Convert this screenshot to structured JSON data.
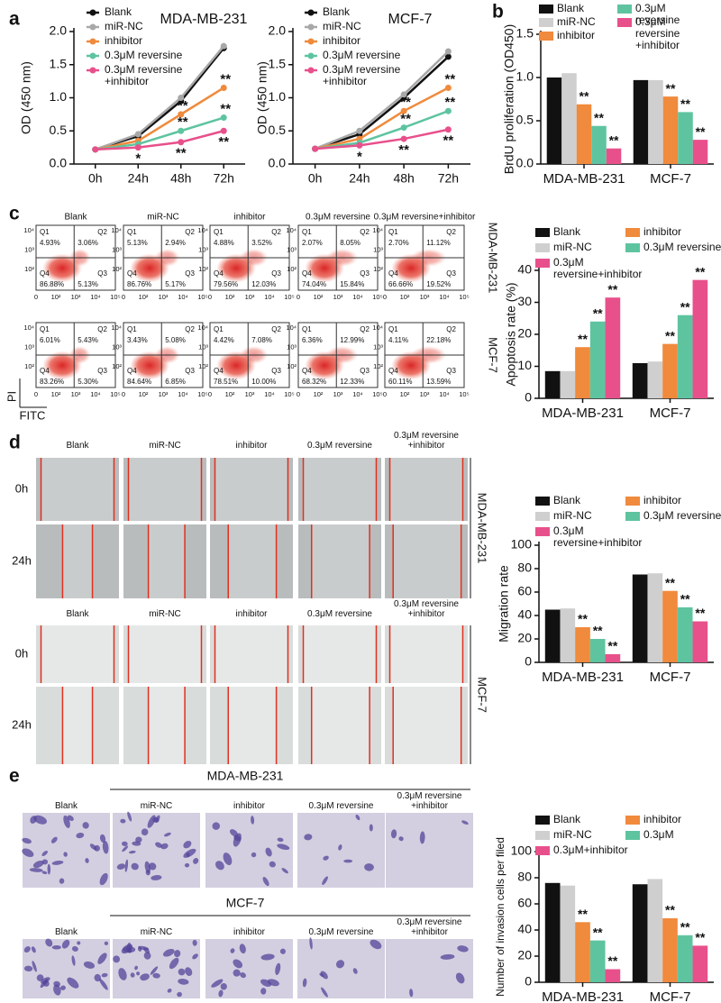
{
  "panel_labels": [
    "a",
    "b",
    "c",
    "d",
    "e"
  ],
  "chart_data": [
    {
      "type": "line",
      "title": "MDA-MB-231",
      "y_label": "OD (450 nm)",
      "categories": [
        "0h",
        "24h",
        "48h",
        "72h"
      ],
      "ylim": [
        0,
        2
      ],
      "yticks": [
        {
          "value": 0,
          "label": "0.0"
        },
        0.5,
        {
          "value": 1,
          "label": "1.0"
        },
        1.5,
        {
          "value": 2,
          "label": "2.0"
        }
      ],
      "series": [
        {
          "name": "Blank",
          "color": "#111111",
          "values": [
            0.22,
            0.42,
            0.95,
            1.75
          ]
        },
        {
          "name": "miR-NC",
          "color": "#a8a8a8",
          "values": [
            0.22,
            0.45,
            1.0,
            1.78
          ]
        },
        {
          "name": "inhibitor",
          "color": "#f08a3c",
          "values": [
            0.22,
            0.35,
            0.75,
            1.15
          ],
          "significance": [
            null,
            null,
            "**",
            "**"
          ]
        },
        {
          "name": "0.3μM reversine",
          "color": "#5ec4a0",
          "values": [
            0.22,
            0.3,
            0.5,
            0.7
          ],
          "significance": [
            null,
            null,
            "**",
            "**"
          ]
        },
        {
          "name": "0.3μM reversine +inhibitor",
          "color": "#e8508c",
          "values": [
            0.22,
            0.25,
            0.33,
            0.5
          ],
          "significance": [
            null,
            "*",
            "**",
            "**"
          ]
        }
      ]
    },
    {
      "type": "line",
      "title": "MCF-7",
      "y_label": "OD (450 nm)",
      "categories": [
        "0h",
        "24h",
        "48h",
        "72h"
      ],
      "ylim": [
        0,
        2
      ],
      "yticks": [
        {
          "value": 0,
          "label": "0.0"
        },
        0.5,
        {
          "value": 1,
          "label": "1.0"
        },
        1.5,
        {
          "value": 2,
          "label": "2.0"
        }
      ],
      "series": [
        {
          "name": "Blank",
          "color": "#111111",
          "values": [
            0.23,
            0.45,
            1.0,
            1.62
          ]
        },
        {
          "name": "miR-NC",
          "color": "#a8a8a8",
          "values": [
            0.23,
            0.5,
            1.05,
            1.7
          ]
        },
        {
          "name": "inhibitor",
          "color": "#f08a3c",
          "values": [
            0.23,
            0.38,
            0.8,
            1.15
          ],
          "significance": [
            null,
            null,
            "**",
            "**"
          ]
        },
        {
          "name": "0.3μM reversine",
          "color": "#5ec4a0",
          "values": [
            0.23,
            0.32,
            0.55,
            0.8
          ],
          "significance": [
            null,
            null,
            "**",
            "**"
          ]
        },
        {
          "name": "0.3μM reversine +inhibitor",
          "color": "#e8508c",
          "values": [
            0.23,
            0.28,
            0.38,
            0.52
          ],
          "significance": [
            null,
            "*",
            "**",
            "**"
          ]
        }
      ]
    },
    {
      "type": "bar",
      "y_label": "BrdU proliferation (OD450)",
      "categories": [
        "MDA-MB-231",
        "MCF-7"
      ],
      "ylim": [
        0,
        1.5
      ],
      "yticks": [
        {
          "value": 0,
          "label": "0.0"
        },
        0.5,
        {
          "value": 1,
          "label": "1.0"
        },
        1.5
      ],
      "series": [
        {
          "name": "Blank",
          "color": "#111111",
          "values": [
            1.0,
            0.97
          ]
        },
        {
          "name": "miR-NC",
          "color": "#cfcfcf",
          "values": [
            1.05,
            0.97
          ]
        },
        {
          "name": "inhibitor",
          "color": "#f08a3c",
          "values": [
            0.69,
            0.78
          ],
          "significance": [
            "**",
            "**"
          ]
        },
        {
          "name": "0.3μM reversine",
          "color": "#5ec4a0",
          "values": [
            0.44,
            0.6
          ],
          "significance": [
            "**",
            "**"
          ]
        },
        {
          "name": "0.3μM reversine +inhibitor",
          "color": "#e8508c",
          "values": [
            0.18,
            0.28
          ],
          "significance": [
            "**",
            "**"
          ]
        }
      ]
    },
    {
      "type": "bar",
      "y_label": "Apoptosis rate (%)",
      "categories": [
        "MDA-MB-231",
        "MCF-7"
      ],
      "ylim": [
        0,
        40
      ],
      "yticks": [
        0,
        10,
        20,
        30,
        40
      ],
      "series": [
        {
          "name": "Blank",
          "color": "#111111",
          "values": [
            8.5,
            11
          ]
        },
        {
          "name": "miR-NC",
          "color": "#cfcfcf",
          "values": [
            8.5,
            11.5
          ]
        },
        {
          "name": "inhibitor",
          "color": "#f08a3c",
          "values": [
            16,
            17
          ],
          "significance": [
            "**",
            "**"
          ]
        },
        {
          "name": "0.3μM reversine",
          "color": "#5ec4a0",
          "values": [
            24,
            26
          ],
          "significance": [
            "**",
            "**"
          ]
        },
        {
          "name": "0.3μM reversine+inhibitor",
          "color": "#e8508c",
          "values": [
            31.5,
            37
          ],
          "significance": [
            "**",
            "**"
          ]
        }
      ]
    },
    {
      "type": "bar",
      "y_label": "Migration rate",
      "categories": [
        "MDA-MB-231",
        "MCF-7"
      ],
      "ylim": [
        0,
        100
      ],
      "yticks": [
        0,
        20,
        40,
        60,
        80,
        100
      ],
      "series": [
        {
          "name": "Blank",
          "color": "#111111",
          "values": [
            45,
            75
          ]
        },
        {
          "name": "miR-NC",
          "color": "#cfcfcf",
          "values": [
            46,
            76
          ]
        },
        {
          "name": "inhibitor",
          "color": "#f08a3c",
          "values": [
            30,
            61
          ],
          "significance": [
            "**",
            "**"
          ]
        },
        {
          "name": "0.3μM reversine",
          "color": "#5ec4a0",
          "values": [
            20,
            47
          ],
          "significance": [
            "**",
            "**"
          ]
        },
        {
          "name": "0.3μM reversine+inhibitor",
          "color": "#e8508c",
          "values": [
            7,
            35
          ],
          "significance": [
            "**",
            "**"
          ]
        }
      ]
    },
    {
      "type": "bar",
      "y_label": "Number of invasion cells per filed",
      "categories": [
        "MDA-MB-231",
        "MCF-7"
      ],
      "ylim": [
        0,
        100
      ],
      "yticks": [
        0,
        20,
        40,
        60,
        80,
        100
      ],
      "series": [
        {
          "name": "Blank",
          "color": "#111111",
          "values": [
            76,
            75
          ]
        },
        {
          "name": "miR-NC",
          "color": "#cfcfcf",
          "values": [
            74,
            79
          ]
        },
        {
          "name": "inhibitor",
          "color": "#f08a3c",
          "values": [
            46,
            49
          ],
          "significance": [
            "**",
            "**"
          ]
        },
        {
          "name": "0.3μM",
          "color": "#5ec4a0",
          "values": [
            32,
            36
          ],
          "significance": [
            "**",
            "**"
          ]
        },
        {
          "name": "0.3μM+inhibitor",
          "color": "#e8508c",
          "values": [
            10,
            28
          ],
          "significance": [
            "**",
            "**"
          ]
        }
      ]
    }
  ],
  "flow": {
    "columns": [
      "Blank",
      "miR-NC",
      "inhibitor",
      "0.3μM reversine",
      "0.3μM reversine+inhibitor"
    ],
    "cell_lines": [
      "MDA-MB-231",
      "MCF-7"
    ],
    "quadrant_names": [
      "Q1",
      "Q2",
      "Q3",
      "Q4"
    ],
    "x_ticks": [
      "0",
      "10²",
      "10³",
      "10⁴",
      "10⁵"
    ],
    "y_ticks": [
      "10⁴",
      "10³",
      "10²"
    ],
    "x_label": "FITC",
    "y_label": "PI",
    "rows": [
      [
        [
          "4.93%",
          "3.06%",
          "5.13%",
          "86.88%"
        ],
        [
          "5.13%",
          "2.94%",
          "5.17%",
          "86.76%"
        ],
        [
          "4.88%",
          "3.52%",
          "12.03%",
          "79.56%"
        ],
        [
          "2.07%",
          "8.05%",
          "15.84%",
          "74.04%"
        ],
        [
          "2.70%",
          "11.12%",
          "19.52%",
          "66.66%"
        ]
      ],
      [
        [
          "6.01%",
          "5.43%",
          "5.30%",
          "83.26%"
        ],
        [
          "3.43%",
          "5.08%",
          "6.85%",
          "84.64%"
        ],
        [
          "4.42%",
          "7.08%",
          "10.00%",
          "78.51%"
        ],
        [
          "6.36%",
          "12.99%",
          "12.33%",
          "68.32%"
        ],
        [
          "4.11%",
          "22.18%",
          "13.59%",
          "60.11%"
        ]
      ]
    ]
  },
  "scratch": {
    "columns": [
      "Blank",
      "miR-NC",
      "inhibitor",
      "0.3μM reversine",
      "0.3μM reversine +inhibitor"
    ],
    "cell_lines": [
      "MDA-MB-231",
      "MCF-7"
    ],
    "times": [
      "0h",
      "24h"
    ]
  },
  "transwell": {
    "columns": [
      "Blank",
      "miR-NC",
      "inhibitor",
      "0.3μM reversine",
      "0.3μM reversine +inhibitor"
    ],
    "cell_lines": [
      "MDA-MB-231",
      "MCF-7"
    ]
  }
}
